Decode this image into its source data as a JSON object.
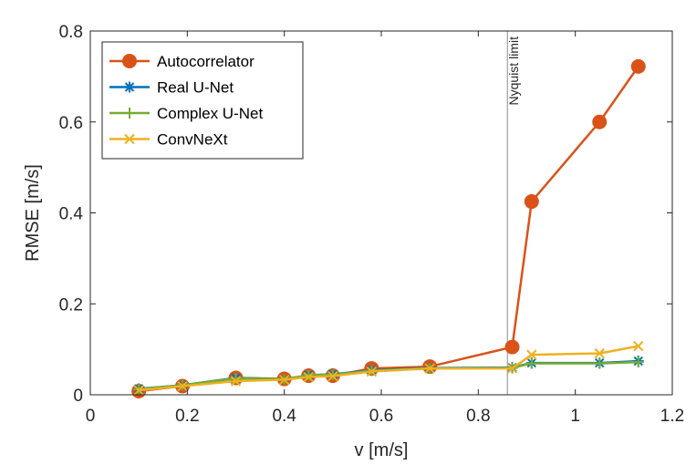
{
  "chart_data": {
    "type": "line",
    "title": "",
    "xlabel": "v [m/s]",
    "ylabel": "RMSE [m/s]",
    "xlim": [
      0,
      1.2
    ],
    "ylim": [
      0,
      0.8
    ],
    "xticks": [
      0,
      0.2,
      0.4,
      0.6,
      0.8,
      1,
      1.2
    ],
    "xtick_labels": [
      "0",
      "0.2",
      "0.4",
      "0.6",
      "0.8",
      "1",
      "1.2"
    ],
    "yticks": [
      0,
      0.2,
      0.4,
      0.6,
      0.8
    ],
    "ytick_labels": [
      "0",
      "0.2",
      "0.4",
      "0.6",
      "0.8"
    ],
    "grid": false,
    "legend_position": "top-left",
    "x": [
      0.1,
      0.19,
      0.3,
      0.4,
      0.45,
      0.5,
      0.58,
      0.7,
      0.87,
      0.91,
      1.05,
      1.13
    ],
    "series": [
      {
        "name": "Autocorrelator",
        "color": "#D95319",
        "marker": "circle",
        "values": [
          0.008,
          0.019,
          0.037,
          0.035,
          0.042,
          0.042,
          0.058,
          0.062,
          0.105,
          0.425,
          0.6,
          0.722
        ]
      },
      {
        "name": "Real U-Net",
        "color": "#0072BD",
        "marker": "asterisk",
        "values": [
          0.013,
          0.021,
          0.037,
          0.034,
          0.043,
          0.045,
          0.054,
          0.059,
          0.06,
          0.07,
          0.07,
          0.074
        ]
      },
      {
        "name": "Complex U-Net",
        "color": "#77AC30",
        "marker": "plus",
        "values": [
          0.012,
          0.021,
          0.036,
          0.034,
          0.043,
          0.044,
          0.053,
          0.058,
          0.059,
          0.069,
          0.069,
          0.072
        ]
      },
      {
        "name": "ConvNeXt",
        "color": "#EDB120",
        "marker": "x",
        "values": [
          0.01,
          0.019,
          0.03,
          0.033,
          0.039,
          0.041,
          0.051,
          0.058,
          0.058,
          0.088,
          0.091,
          0.107
        ]
      }
    ],
    "annotations": [
      {
        "text": "Nyquist limit",
        "x": 0.86,
        "type": "vertical-line",
        "color": "#8c8c8c"
      }
    ]
  }
}
